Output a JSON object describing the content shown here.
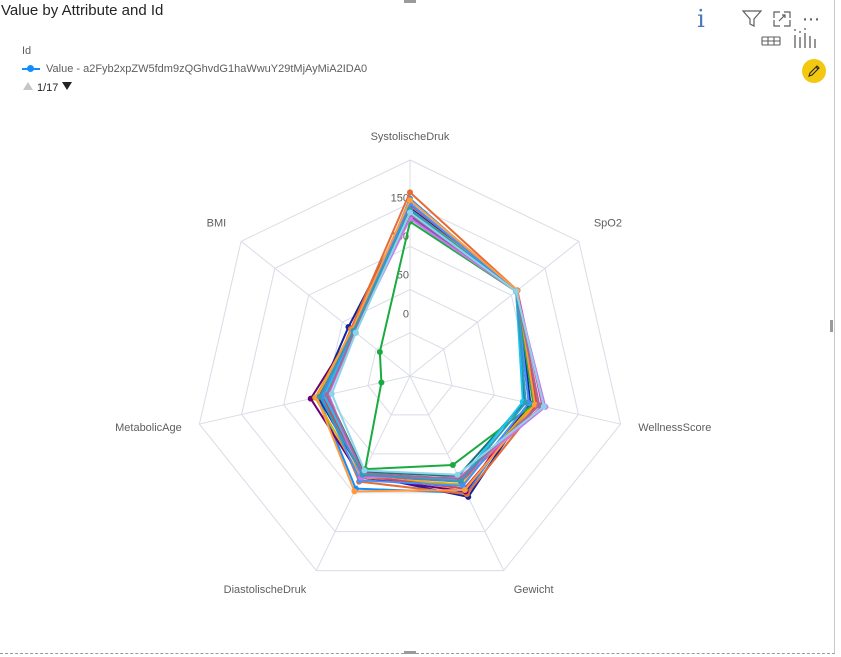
{
  "header": {
    "title": "Value by Attribute and Id"
  },
  "toolbar": {
    "icons": [
      "info-icon",
      "filter-icon",
      "focus-mode-icon",
      "more-options-icon",
      "table-icon",
      "chart-icon",
      "edit-icon"
    ],
    "info_glyph": "i",
    "more_glyph": "⋯"
  },
  "legend": {
    "title": "Id",
    "entry": "Value - a2Fyb2xpZW5fdm9zQGhvdG1haWwuY29tMjAyMiA2IDA0",
    "entry_color": "#118DFF",
    "page_label": "1/17"
  },
  "chart_data": {
    "type": "radar",
    "title": "Value by Attribute and Id",
    "axes": [
      "SystolischeDruk",
      "SpO2",
      "WellnessScore",
      "Gewicht",
      "DiastolischeDruk",
      "MetabolicAge",
      "BMI"
    ],
    "tick_labels": [
      "0",
      "50",
      "100",
      "150"
    ],
    "range": [
      -80,
      200
    ],
    "grid": true,
    "series": [
      {
        "name": "Value - a2Fyb2xpZW5fdm9zQGhvdG1haWwuY29tMjAyMiA2IDA0",
        "color": "#118DFF",
        "values": [
          150,
          96,
          80,
          88,
          82,
          42,
          12
        ]
      },
      {
        "color": "#12239E",
        "values": [
          138,
          98,
          80,
          94,
          62,
          42,
          22
        ]
      },
      {
        "color": "#E66C37",
        "values": [
          158,
          98,
          90,
          90,
          72,
          36,
          18
        ]
      },
      {
        "color": "#6B007B",
        "values": [
          130,
          96,
          78,
          86,
          66,
          52,
          14
        ]
      },
      {
        "color": "#E044A7",
        "values": [
          126,
          98,
          96,
          72,
          64,
          32,
          14
        ]
      },
      {
        "color": "#744EC2",
        "values": [
          128,
          96,
          88,
          70,
          62,
          38,
          12
        ]
      },
      {
        "color": "#D9B300",
        "values": [
          136,
          98,
          84,
          76,
          66,
          46,
          16
        ]
      },
      {
        "color": "#D64550",
        "values": [
          142,
          98,
          88,
          82,
          64,
          36,
          16
        ]
      },
      {
        "color": "#197278",
        "values": [
          134,
          96,
          72,
          64,
          58,
          30,
          10
        ]
      },
      {
        "color": "#1AAB40",
        "values": [
          120,
          96,
          84,
          48,
          54,
          -42,
          -30
        ]
      },
      {
        "color": "#15C6F4",
        "values": [
          132,
          96,
          70,
          70,
          60,
          34,
          12
        ]
      },
      {
        "color": "#4092FF",
        "values": [
          144,
          96,
          78,
          78,
          70,
          38,
          14
        ]
      },
      {
        "color": "#FF9A3D",
        "values": [
          148,
          98,
          86,
          84,
          86,
          44,
          16
        ]
      },
      {
        "color": "#CB78EB",
        "values": [
          124,
          96,
          100,
          66,
          66,
          28,
          12
        ]
      },
      {
        "color": "#A66999",
        "values": [
          130,
          96,
          92,
          68,
          60,
          30,
          12
        ]
      },
      {
        "color": "#3599B8",
        "values": [
          136,
          96,
          74,
          72,
          62,
          40,
          14
        ]
      },
      {
        "color": "#8AD4EB",
        "values": [
          132,
          96,
          98,
          62,
          56,
          24,
          10
        ]
      }
    ]
  }
}
